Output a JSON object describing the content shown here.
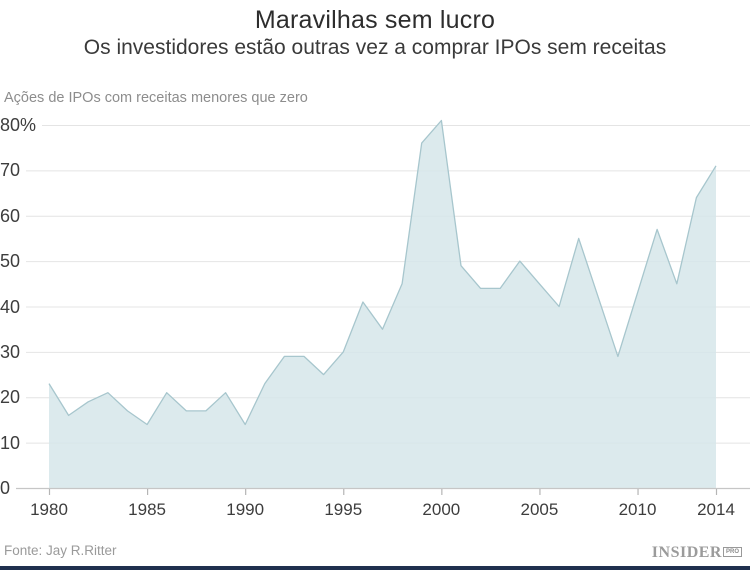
{
  "header": {
    "title": "Maravilhas sem lucro",
    "subtitle": "Os investidores estão outras vez a comprar IPOs sem receitas"
  },
  "chart_data": {
    "type": "area",
    "title": "Maravilhas sem lucro",
    "subtitle": "Os investidores estão outras vez a comprar IPOs sem receitas",
    "axis_label": "Ações de IPOs com receitas menores que zero",
    "x": [
      1980,
      1981,
      1982,
      1983,
      1984,
      1985,
      1986,
      1987,
      1988,
      1989,
      1990,
      1991,
      1992,
      1993,
      1994,
      1995,
      1996,
      1997,
      1998,
      1999,
      2000,
      2001,
      2002,
      2003,
      2004,
      2005,
      2006,
      2007,
      2008,
      2009,
      2010,
      2011,
      2012,
      2013,
      2014
    ],
    "values": [
      23,
      16,
      19,
      21,
      17,
      14,
      21,
      17,
      17,
      21,
      14,
      23,
      29,
      29,
      25,
      30,
      41,
      35,
      45,
      76,
      81,
      49,
      44,
      44,
      50,
      45,
      40,
      55,
      42,
      29,
      43,
      57,
      45,
      64,
      71
    ],
    "xlabel": "",
    "ylabel": "%",
    "ylim": [
      0,
      80
    ],
    "xlim": [
      1980,
      2014
    ],
    "grid": true,
    "legend": "none",
    "ytick_values": [
      80,
      70,
      60,
      50,
      40,
      30,
      20,
      10,
      0
    ],
    "ytick_labels": [
      "80%",
      "70",
      "60",
      "50",
      "40",
      "30",
      "20",
      "10",
      "0"
    ],
    "xtick_values": [
      1980,
      1985,
      1990,
      1995,
      2000,
      2005,
      2010,
      2014
    ],
    "xtick_labels": [
      "1980",
      "1985",
      "1990",
      "1995",
      "2000",
      "2005",
      "2010",
      "2014"
    ],
    "colors": {
      "fill": "#d6e6ea",
      "stroke": "#a7c6cd",
      "grid": "#e4e4e4",
      "axis": "#c6c6c6",
      "tick": "#b5b5b5"
    }
  },
  "footer": {
    "source": "Fonte: Jay R.Ritter",
    "logo_text": "INSIDER",
    "logo_badge": "PRO",
    "bar_color": "#20304e"
  }
}
